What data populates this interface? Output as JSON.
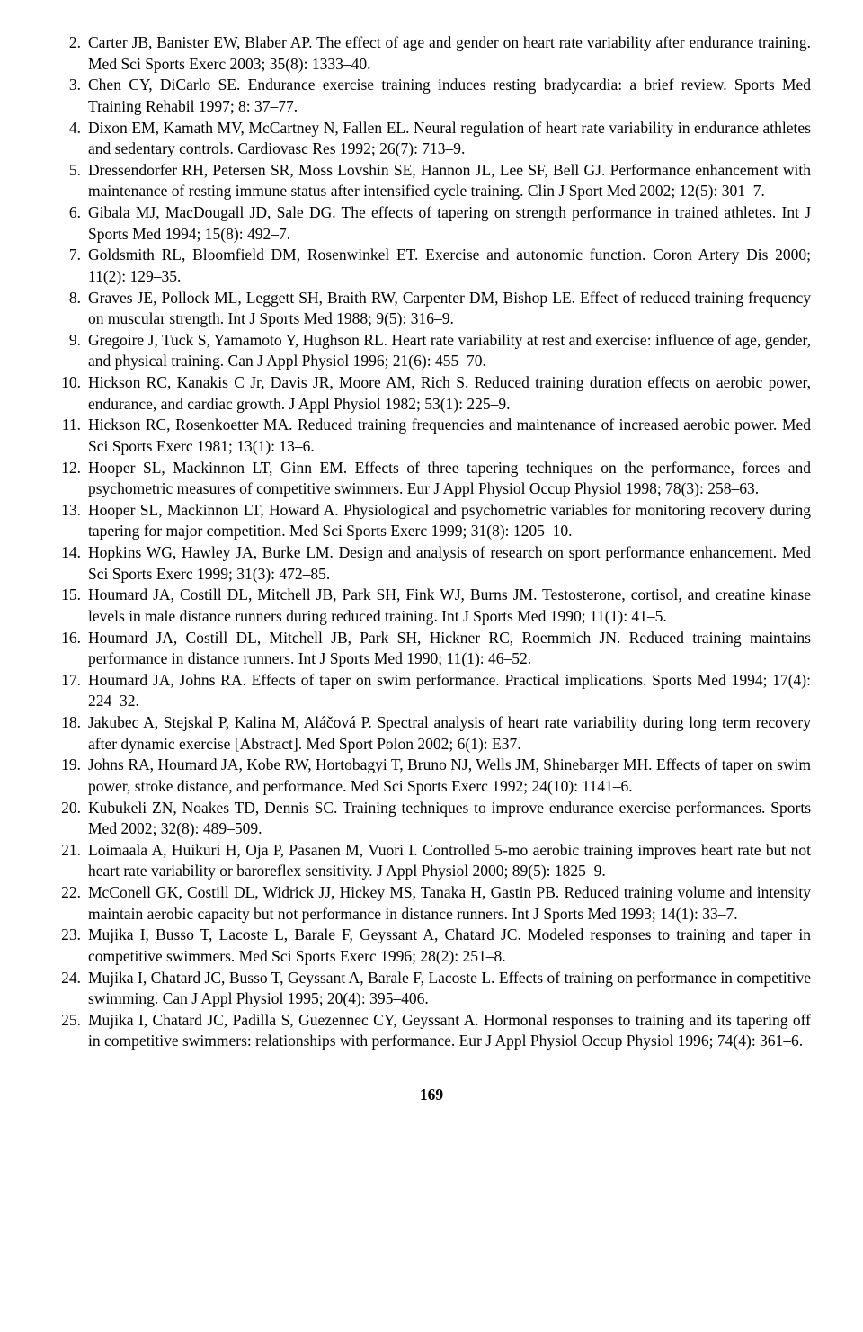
{
  "page_number": "169",
  "references": [
    {
      "n": 2,
      "text": "Carter JB, Banister EW, Blaber AP. The effect of age and gender on heart rate variability after endurance training. Med Sci Sports Exerc 2003; 35(8): 1333–40."
    },
    {
      "n": 3,
      "text": "Chen CY, DiCarlo SE. Endurance exercise training induces resting bradycardia: a brief review. Sports Med Training Rehabil 1997; 8: 37–77."
    },
    {
      "n": 4,
      "text": "Dixon EM, Kamath MV, McCartney N, Fallen EL. Neural regulation of heart rate variability in endurance athletes and sedentary controls. Cardiovasc Res 1992; 26(7): 713–9."
    },
    {
      "n": 5,
      "text": "Dressendorfer RH, Petersen SR, Moss Lovshin SE, Hannon JL, Lee SF, Bell GJ. Performance enhancement with maintenance of resting immune status after intensified cycle training. Clin J Sport Med 2002; 12(5): 301–7."
    },
    {
      "n": 6,
      "text": "Gibala MJ, MacDougall JD, Sale DG. The effects of tapering on strength performance in trained athletes. Int J Sports Med 1994; 15(8): 492–7."
    },
    {
      "n": 7,
      "text": "Goldsmith RL, Bloomfield DM, Rosenwinkel ET. Exercise and autonomic function. Coron Artery Dis 2000; 11(2): 129–35."
    },
    {
      "n": 8,
      "text": "Graves JE, Pollock ML, Leggett SH, Braith RW, Carpenter DM, Bishop LE. Effect of reduced training frequency on muscular strength. Int J Sports Med 1988; 9(5): 316–9."
    },
    {
      "n": 9,
      "text": "Gregoire J, Tuck S, Yamamoto Y, Hughson RL. Heart rate variability at rest and exercise: influence of age, gender, and physical training. Can J Appl Physiol 1996; 21(6): 455–70."
    },
    {
      "n": 10,
      "text": "Hickson RC, Kanakis C Jr, Davis JR, Moore AM, Rich S. Reduced training duration effects on aerobic power, endurance, and cardiac growth. J Appl Physiol 1982; 53(1): 225–9."
    },
    {
      "n": 11,
      "text": "Hickson RC, Rosenkoetter MA. Reduced training frequencies and maintenance of increased aerobic power. Med Sci Sports Exerc 1981; 13(1): 13–6."
    },
    {
      "n": 12,
      "text": "Hooper SL, Mackinnon LT, Ginn EM. Effects of three tapering techniques on the performance, forces and psychometric measures of competitive swimmers. Eur J Appl Physiol Occup Physiol 1998; 78(3): 258–63."
    },
    {
      "n": 13,
      "text": "Hooper SL, Mackinnon LT, Howard A. Physiological and psychometric variables for monitoring recovery during tapering for major competition. Med Sci Sports Exerc 1999; 31(8): 1205–10."
    },
    {
      "n": 14,
      "text": "Hopkins WG, Hawley JA, Burke LM. Design and analysis of research on sport performance enhancement. Med Sci Sports Exerc 1999; 31(3): 472–85."
    },
    {
      "n": 15,
      "text": "Houmard JA, Costill DL, Mitchell JB, Park SH, Fink WJ, Burns JM. Testosterone, cortisol, and creatine kinase levels in male distance runners during reduced training. Int J Sports Med 1990; 11(1): 41–5."
    },
    {
      "n": 16,
      "text": "Houmard JA, Costill DL, Mitchell JB, Park SH, Hickner RC, Roemmich JN. Reduced training maintains performance in distance runners. Int J Sports Med 1990; 11(1): 46–52."
    },
    {
      "n": 17,
      "text": "Houmard JA, Johns RA. Effects of taper on swim performance. Practical implications. Sports Med 1994; 17(4): 224–32."
    },
    {
      "n": 18,
      "text": "Jakubec A, Stejskal P, Kalina M, Aláčová P. Spectral analysis of heart rate variability during long term recovery after dynamic exercise [Abstract]. Med Sport Polon 2002; 6(1): E37."
    },
    {
      "n": 19,
      "text": "Johns RA, Houmard JA, Kobe RW, Hortobagyi T, Bruno NJ, Wells JM, Shinebarger MH. Effects of taper on swim power, stroke distance, and performance. Med Sci Sports Exerc 1992; 24(10): 1141–6."
    },
    {
      "n": 20,
      "text": "Kubukeli ZN, Noakes TD, Dennis SC. Training techniques to improve endurance exercise performances. Sports Med 2002; 32(8): 489–509."
    },
    {
      "n": 21,
      "text": "Loimaala A, Huikuri H, Oja P, Pasanen M, Vuori I. Controlled 5-mo aerobic training improves heart rate but not heart rate variability or baroreflex sensitivity. J Appl Physiol 2000; 89(5): 1825–9."
    },
    {
      "n": 22,
      "text": "McConell GK, Costill DL, Widrick JJ, Hickey MS, Tanaka H, Gastin PB. Reduced training volume and intensity maintain aerobic capacity but not performance in distance runners. Int J Sports Med 1993; 14(1): 33–7."
    },
    {
      "n": 23,
      "text": "Mujika I, Busso T, Lacoste L, Barale F, Geyssant A, Chatard JC. Modeled responses to training and taper in competitive swimmers. Med Sci Sports Exerc 1996; 28(2): 251–8."
    },
    {
      "n": 24,
      "text": "Mujika I, Chatard JC, Busso T, Geyssant A, Barale F, Lacoste L. Effects of training on performance in competitive swimming. Can J Appl Physiol 1995; 20(4): 395–406."
    },
    {
      "n": 25,
      "text": "Mujika I, Chatard JC, Padilla S, Guezennec CY, Geyssant A. Hormonal responses to training and its tapering off in competitive swimmers: relationships with performance. Eur J Appl Physiol Occup Physiol 1996; 74(4): 361–6."
    }
  ],
  "typography": {
    "font_family": "Georgia, 'Times New Roman', serif",
    "font_size_pt": 13,
    "line_height": 1.35,
    "text_color": "#000000",
    "background_color": "#ffffff",
    "text_align": "justify",
    "page_number_bold": true
  }
}
